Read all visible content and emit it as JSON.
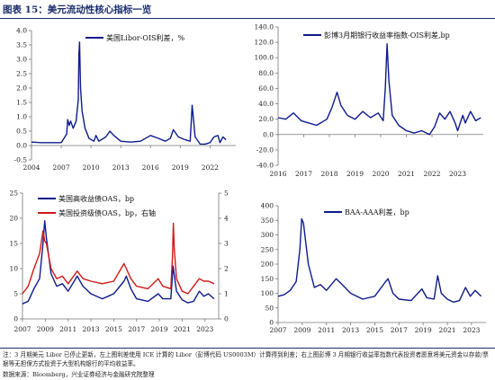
{
  "figure": {
    "title": "图表 15：美元流动性核心指标一览",
    "note": "注：3 月期美元 Libor 已停止更新，左上图利差使用 ICE 计算的 Libor（彭博代码 US0003M）计算得到利差；右上图彭博 3 月期银行收益率指数代表投资者愿意将美元资金以存款/票据等无担保方式投资于大型机构银行的平均收益率。",
    "source": "数据来源：Bloomberg，兴业证券经济与金融研究院整理"
  },
  "chart_data": [
    {
      "type": "line",
      "legend_position": "top",
      "ylim": [
        -0.5,
        4.0
      ],
      "y_ticks": [
        "-0.5",
        "0.0",
        "0.5",
        "1.0",
        "1.5",
        "2.0",
        "2.5",
        "3.0",
        "3.5",
        "4.0"
      ],
      "x_ticks": [
        "2004",
        "2007",
        "2010",
        "2013",
        "2016",
        "2019",
        "2022"
      ],
      "series": [
        {
          "name": "美国Libor-OIS利差，%",
          "color": "#0d1b8c",
          "x": [
            2004.0,
            2005.0,
            2006.0,
            2007.0,
            2007.55,
            2007.65,
            2007.8,
            2007.95,
            2008.2,
            2008.5,
            2008.72,
            2008.78,
            2008.85,
            2008.95,
            2009.1,
            2009.4,
            2009.8,
            2010.3,
            2010.5,
            2010.8,
            2011.5,
            2011.9,
            2012.3,
            2013.0,
            2014.0,
            2015.0,
            2016.0,
            2016.8,
            2017.5,
            2018.0,
            2018.3,
            2018.8,
            2019.5,
            2020.0,
            2020.2,
            2020.5,
            2021.0,
            2021.5,
            2022.0,
            2022.4,
            2022.8,
            2023.0,
            2023.3,
            2023.6
          ],
          "y": [
            0.12,
            0.1,
            0.1,
            0.1,
            0.4,
            0.9,
            0.7,
            0.85,
            0.6,
            0.85,
            1.6,
            3.2,
            3.6,
            2.0,
            1.2,
            0.6,
            0.25,
            0.15,
            0.35,
            0.15,
            0.3,
            0.5,
            0.35,
            0.15,
            0.12,
            0.15,
            0.35,
            0.25,
            0.15,
            0.25,
            0.55,
            0.3,
            0.2,
            0.15,
            1.4,
            0.3,
            0.05,
            0.05,
            0.1,
            0.3,
            0.35,
            0.1,
            0.3,
            0.2
          ]
        }
      ]
    },
    {
      "type": "line",
      "legend_position": "top",
      "ylim": [
        -40,
        140
      ],
      "y_ticks": [
        "-40.0",
        "-20.0",
        "0.0",
        "20.0",
        "40.0",
        "60.0",
        "80.0",
        "100.0",
        "120.0",
        "140.0"
      ],
      "x_ticks": [
        "2016",
        "2017",
        "2018",
        "2019",
        "2020",
        "2021",
        "2022",
        "2023"
      ],
      "series": [
        {
          "name": "彭博3月期银行收益率指数-OIS利差,bp",
          "color": "#0d1b8c",
          "x": [
            2016.0,
            2016.3,
            2016.6,
            2016.9,
            2017.2,
            2017.5,
            2017.9,
            2018.1,
            2018.3,
            2018.45,
            2018.7,
            2019.0,
            2019.3,
            2019.6,
            2019.9,
            2020.1,
            2020.18,
            2020.25,
            2020.32,
            2020.45,
            2020.7,
            2021.0,
            2021.3,
            2021.6,
            2021.9,
            2022.1,
            2022.3,
            2022.5,
            2022.7,
            2022.9,
            2023.0,
            2023.2,
            2023.3,
            2023.5,
            2023.7,
            2023.9
          ],
          "y": [
            22,
            20,
            28,
            18,
            15,
            12,
            20,
            35,
            55,
            38,
            25,
            20,
            30,
            22,
            28,
            18,
            60,
            118,
            70,
            25,
            12,
            5,
            2,
            5,
            0,
            10,
            28,
            20,
            30,
            15,
            5,
            25,
            15,
            30,
            18,
            22
          ]
        }
      ]
    },
    {
      "type": "line",
      "legend_position": "top-left",
      "ylim": [
        0,
        25
      ],
      "y_ticks": [
        "0",
        "5",
        "10",
        "15",
        "20",
        "25"
      ],
      "y2lim": [
        0,
        5
      ],
      "y2_ticks": [
        "0",
        "1",
        "2",
        "3",
        "4",
        "5"
      ],
      "x_ticks": [
        "2007",
        "2009",
        "2011",
        "2013",
        "2015",
        "2017",
        "2019",
        "2021",
        "2023"
      ],
      "series": [
        {
          "name": "美国高收益债OAS，bp",
          "color": "#0d1b8c",
          "axis": "left",
          "x": [
            2007.0,
            2007.5,
            2008.0,
            2008.5,
            2008.8,
            2008.95,
            2009.1,
            2009.5,
            2010.0,
            2010.5,
            2011.0,
            2011.8,
            2012.3,
            2013.0,
            2014.0,
            2014.5,
            2015.0,
            2015.9,
            2016.1,
            2016.5,
            2017.0,
            2018.0,
            2018.9,
            2019.3,
            2020.0,
            2020.2,
            2020.5,
            2021.0,
            2021.5,
            2022.0,
            2022.5,
            2022.9,
            2023.3,
            2023.8
          ],
          "y": [
            3.0,
            3.5,
            6.0,
            8.0,
            15.0,
            19.5,
            16.0,
            9.0,
            6.5,
            7.0,
            5.5,
            8.5,
            6.5,
            5.0,
            4.0,
            4.5,
            5.0,
            7.5,
            8.5,
            6.0,
            4.0,
            3.5,
            5.0,
            4.0,
            4.0,
            10.5,
            5.5,
            3.8,
            3.2,
            3.5,
            5.5,
            4.5,
            5.0,
            4.0
          ]
        },
        {
          "name": "美国投资级债OAS，bp，右轴",
          "color": "#d01818",
          "axis": "right",
          "x": [
            2007.0,
            2007.5,
            2008.0,
            2008.5,
            2008.8,
            2008.95,
            2009.1,
            2009.5,
            2010.0,
            2010.5,
            2011.0,
            2011.8,
            2012.3,
            2013.0,
            2014.0,
            2015.0,
            2015.9,
            2016.1,
            2016.5,
            2017.0,
            2018.0,
            2018.9,
            2019.3,
            2020.0,
            2020.15,
            2020.22,
            2020.3,
            2020.5,
            2021.0,
            2021.5,
            2022.0,
            2022.5,
            2022.9,
            2023.3,
            2023.8
          ],
          "y": [
            1.0,
            1.3,
            2.0,
            2.6,
            3.5,
            3.1,
            3.0,
            2.0,
            1.6,
            1.7,
            1.4,
            1.9,
            1.6,
            1.5,
            1.4,
            1.5,
            2.2,
            2.0,
            1.6,
            1.3,
            1.2,
            1.6,
            1.3,
            1.2,
            2.5,
            3.8,
            2.8,
            1.6,
            1.1,
            1.0,
            1.3,
            1.6,
            1.5,
            1.5,
            1.4
          ]
        }
      ]
    },
    {
      "type": "line",
      "legend_position": "top",
      "ylim": [
        0,
        400
      ],
      "y_ticks": [
        "0",
        "50",
        "100",
        "150",
        "200",
        "250",
        "300",
        "350",
        "400"
      ],
      "x_ticks": [
        "2007",
        "2009",
        "2011",
        "2013",
        "2015",
        "2017",
        "2019",
        "2021",
        "2023"
      ],
      "series": [
        {
          "name": "BAA-AAA利差，bp",
          "color": "#0d1b8c",
          "x": [
            2007.0,
            2007.5,
            2008.0,
            2008.5,
            2008.8,
            2008.95,
            2009.1,
            2009.5,
            2010.0,
            2010.5,
            2011.0,
            2011.8,
            2012.3,
            2013.0,
            2014.0,
            2015.0,
            2015.9,
            2016.1,
            2016.5,
            2017.0,
            2018.0,
            2018.9,
            2019.3,
            2019.9,
            2020.2,
            2020.5,
            2021.0,
            2021.5,
            2022.0,
            2022.5,
            2022.9,
            2023.3,
            2023.8
          ],
          "y": [
            90,
            95,
            110,
            140,
            250,
            355,
            340,
            200,
            120,
            130,
            110,
            150,
            130,
            100,
            80,
            90,
            140,
            150,
            100,
            80,
            75,
            115,
            85,
            80,
            160,
            100,
            80,
            70,
            75,
            120,
            90,
            110,
            90
          ]
        }
      ]
    }
  ]
}
